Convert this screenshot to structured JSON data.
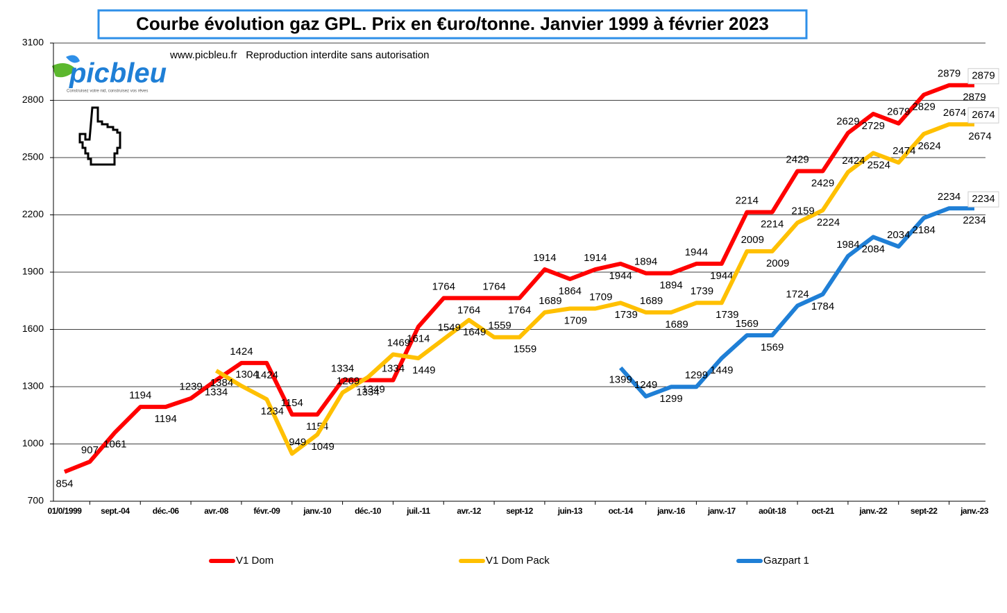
{
  "chart_data": {
    "type": "line",
    "title": "Courbe évolution gaz GPL. Prix en €uro/tonne. Janvier 1999 à février 2023",
    "watermark": "www.picbleu.fr   Reproduction interdite sans autorisation",
    "logo": "picbleu",
    "logo_tagline": "Construisez votre nid, construisez vos rêves",
    "categories": [
      "01/0/1999",
      null,
      "sept.-04",
      null,
      "déc.-06",
      null,
      "avr.-08",
      null,
      "févr.-09",
      null,
      "janv.-10",
      null,
      "déc.-10",
      null,
      "juil.-11",
      null,
      "avr.-12",
      null,
      "sept-12",
      null,
      "juin-13",
      null,
      "oct.-14",
      null,
      "janv.-16",
      null,
      "janv.-17",
      null,
      "août-18",
      null,
      "oct-21",
      null,
      "janv.-22",
      null,
      "sept-22",
      null,
      "janv.-23"
    ],
    "series": [
      {
        "name": "V1 Dom",
        "color": "#ff0000",
        "values": [
          854,
          907,
          1061,
          1194,
          1194,
          1239,
          1334,
          1424,
          1424,
          1154,
          1154,
          1334,
          1334,
          1334,
          1614,
          1764,
          1764,
          1764,
          1764,
          1914,
          1864,
          1914,
          1944,
          1894,
          1894,
          1944,
          1944,
          2214,
          2214,
          2429,
          2429,
          2629,
          2729,
          2679,
          2829,
          2879,
          2879
        ]
      },
      {
        "name": "V1 Dom Pack",
        "color": "#ffc000",
        "values": [
          null,
          null,
          null,
          null,
          null,
          null,
          1384,
          1304,
          1234,
          949,
          1049,
          1269,
          1349,
          1469,
          1449,
          1549,
          1649,
          1559,
          1559,
          1689,
          1709,
          1709,
          1739,
          1689,
          1689,
          1739,
          1739,
          2009,
          2009,
          2159,
          2224,
          2424,
          2524,
          2474,
          2624,
          2674,
          2674
        ]
      },
      {
        "name": "Gazpart 1",
        "color": "#1f7fd6",
        "values": [
          null,
          null,
          null,
          null,
          null,
          null,
          null,
          null,
          null,
          null,
          null,
          null,
          null,
          null,
          null,
          null,
          null,
          null,
          null,
          null,
          null,
          null,
          1399,
          1249,
          1299,
          1299,
          1449,
          1569,
          1569,
          1724,
          1784,
          1984,
          2084,
          2034,
          2184,
          2234,
          2234
        ]
      }
    ],
    "ylim": [
      700,
      3100
    ],
    "yticks": [
      700,
      1000,
      1300,
      1600,
      1900,
      2200,
      2500,
      2800,
      3100
    ],
    "grid": true
  }
}
